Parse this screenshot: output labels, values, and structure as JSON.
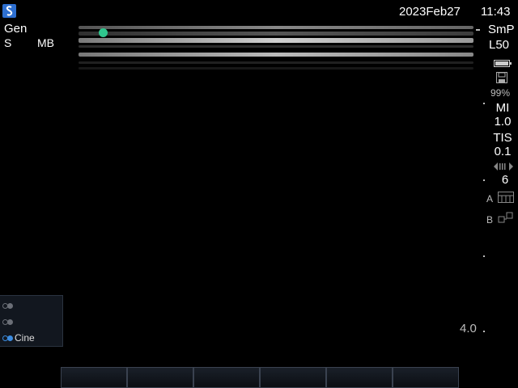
{
  "header": {
    "date": "2023Feb27",
    "time": "11:43"
  },
  "top_left": {
    "preset": "Gen",
    "mode_letter": "S",
    "mode": "MB"
  },
  "probe": {
    "preset_short": "SmP",
    "transducer": "L50"
  },
  "status": {
    "storage_percent": "99%",
    "mi_label": "MI",
    "mi_value": "1.0",
    "tis_label": "TIS",
    "tis_value": "0.1",
    "depth_number": "6",
    "a_label": "A",
    "b_label": "B"
  },
  "scale": {
    "depth_label": "4.0"
  },
  "side_panel": {
    "rows": [
      {
        "label": ""
      },
      {
        "label": ""
      },
      {
        "label": "Cine"
      }
    ]
  },
  "softkeys": [
    "",
    "",
    "",
    "",
    "",
    ""
  ],
  "icons": {
    "logo": "sonosite-logo-icon",
    "battery": "battery-icon",
    "storage": "floppy-disk-icon",
    "gain": "gain-arrows-icon",
    "layout_a": "single-layout-icon",
    "layout_b": "dual-layout-icon"
  },
  "colors": {
    "background": "#000000",
    "marker": "#2fc58d",
    "logo": "#2d6fd0",
    "panel_accent": "#3c8ce0"
  }
}
